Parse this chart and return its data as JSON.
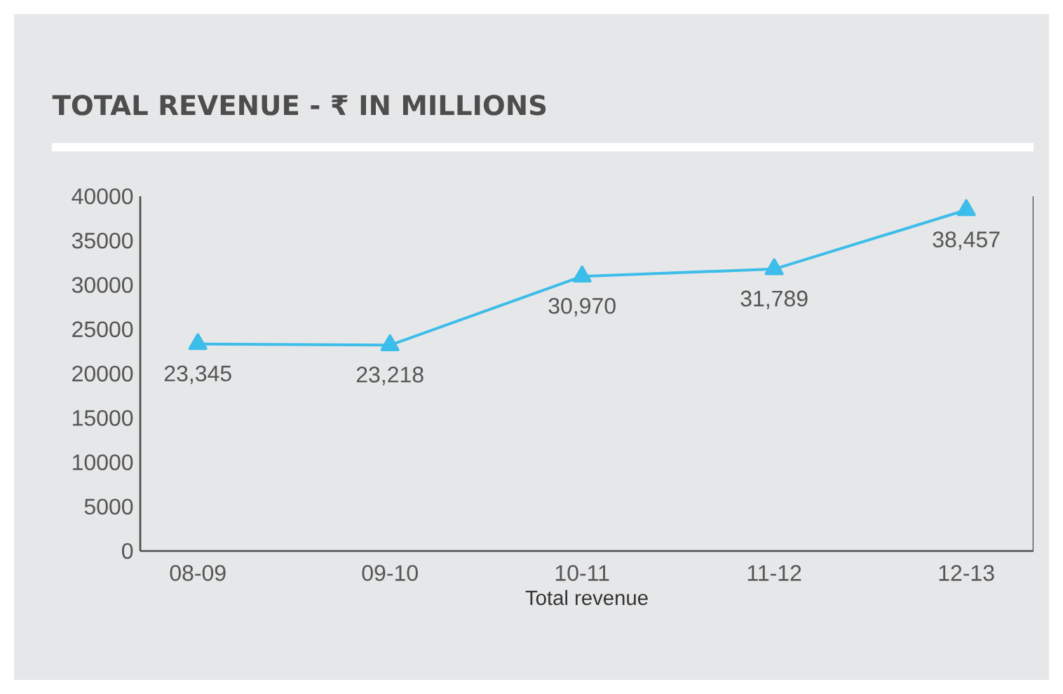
{
  "chart_data": {
    "type": "line",
    "title": "TOTAL REVENUE - ₹ IN MILLIONS",
    "xlabel": "Total revenue",
    "categories": [
      "08-09",
      "09-10",
      "10-11",
      "11-12",
      "12-13"
    ],
    "series": [
      {
        "color": "#3dbde9",
        "values": [
          23345,
          23218,
          30970,
          31789,
          38457
        ]
      }
    ],
    "ylim": [
      0,
      40000
    ],
    "yticks": [
      0,
      5000,
      10000,
      15000,
      20000,
      25000,
      30000,
      35000,
      40000
    ],
    "value_labels": [
      "23,345",
      "23,218",
      "30,970",
      "31,789",
      "38,457"
    ],
    "marker": "triangle",
    "line_style": "solid",
    "grid": false
  }
}
